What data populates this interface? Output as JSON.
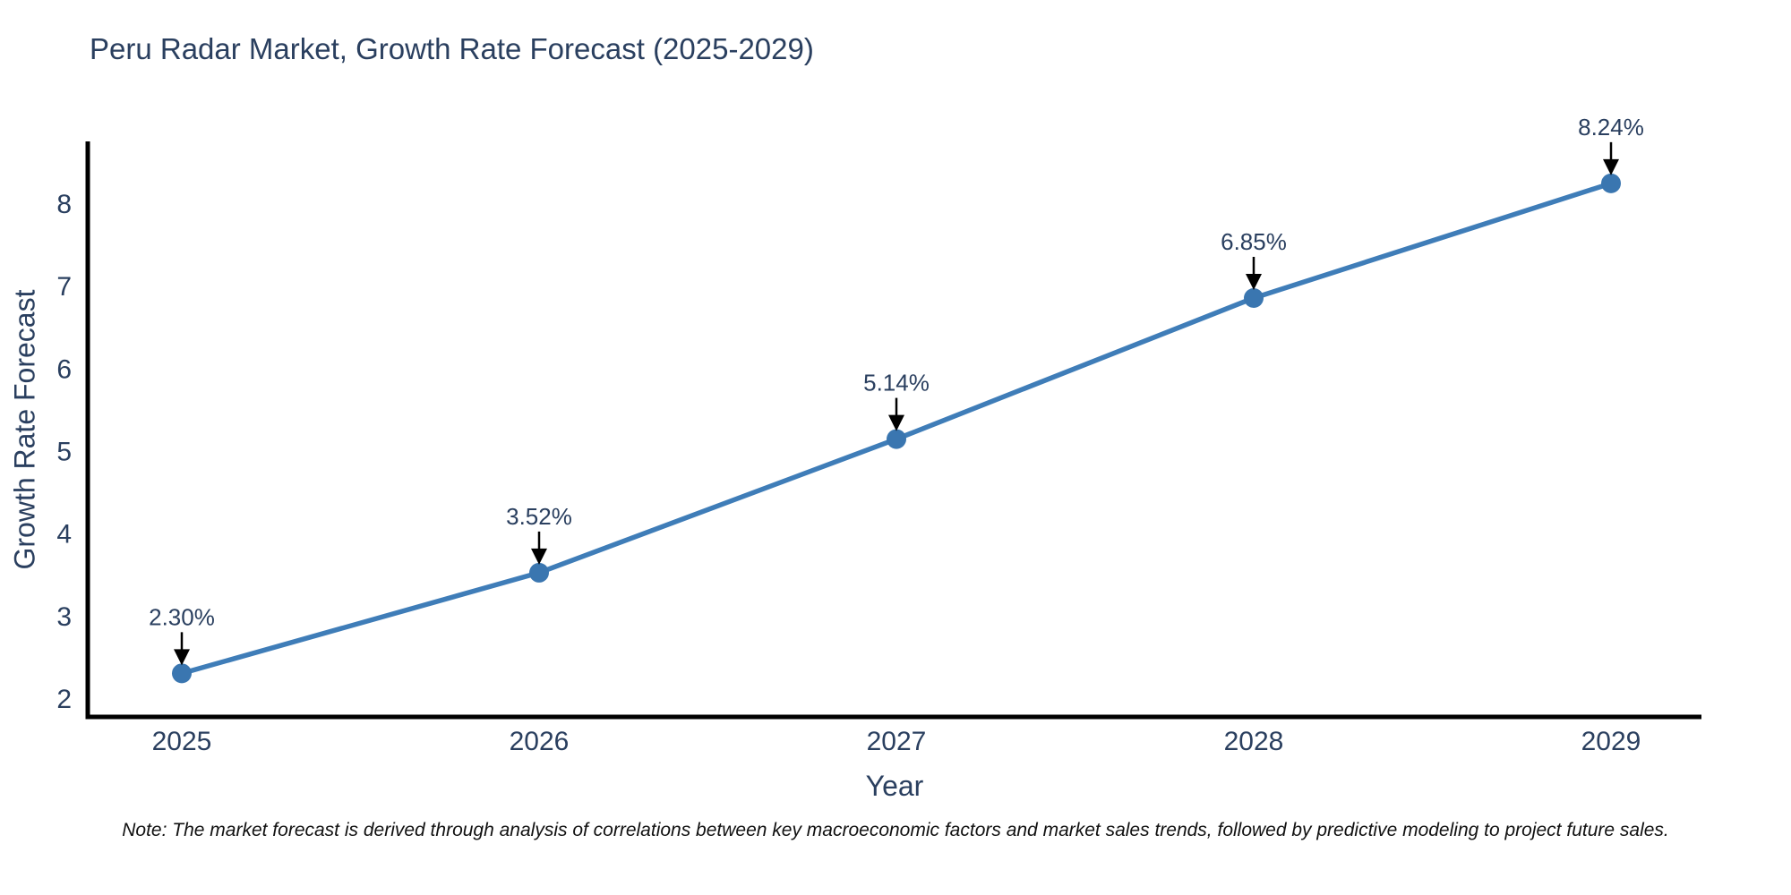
{
  "note": "Note: The market forecast is derived through analysis of correlations between key macroeconomic factors and market sales trends, followed by predictive modeling to project future sales.",
  "colors": {
    "line": "#3f7db8",
    "marker": "#3a76b0",
    "axis": "#000000",
    "arrow": "#000000",
    "text": "#2a3f5f",
    "note_text": "#111111",
    "background": "#ffffff"
  },
  "chart_data": {
    "type": "line",
    "title": "Peru Radar Market, Growth Rate Forecast (2025-2029)",
    "xlabel": "Year",
    "ylabel": "Growth Rate Forecast",
    "x": [
      2025,
      2026,
      2027,
      2028,
      2029
    ],
    "y": [
      2.3,
      3.52,
      5.14,
      6.85,
      8.24
    ],
    "point_labels": [
      "2.30%",
      "3.52%",
      "5.14%",
      "6.85%",
      "8.24%"
    ],
    "yticks": [
      2,
      3,
      4,
      5,
      6,
      7,
      8
    ],
    "ylim": [
      1.78,
      8.73
    ],
    "xlim_padding_note": "categorical years evenly spaced",
    "grid": false,
    "legend": "none",
    "marker_style": "filled-circle",
    "annotation_arrows": "black arrows pointing down onto each marker"
  }
}
